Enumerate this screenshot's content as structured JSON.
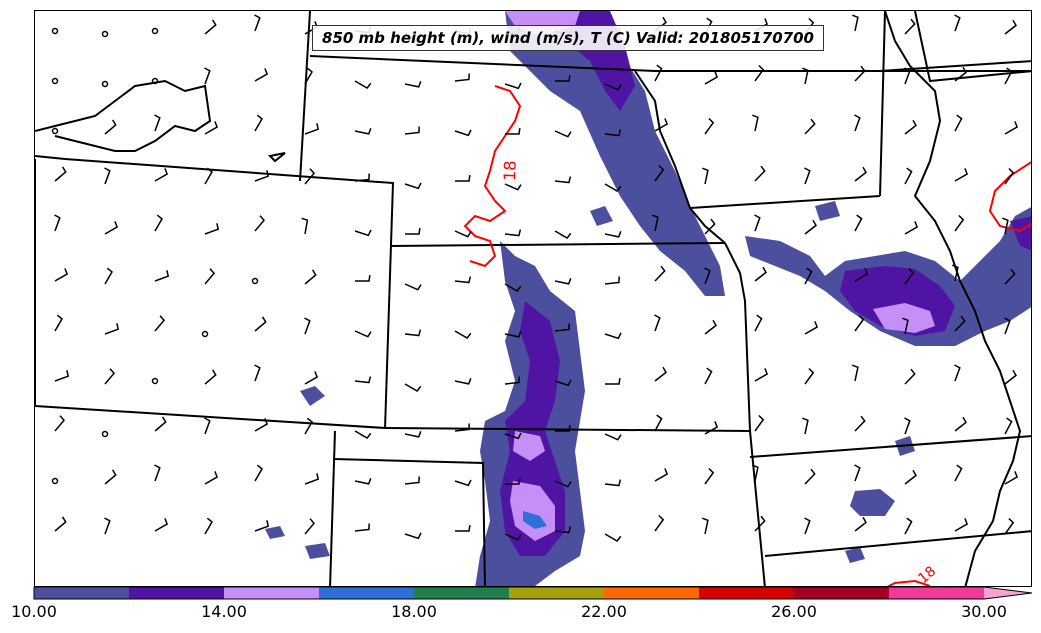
{
  "title": "850 mb height (m), wind (m/s), T (C) Valid: 201805170700",
  "contour_labels": [
    {
      "text": "18",
      "color": "#ff0000"
    },
    {
      "text": "18",
      "color": "#ff0000"
    }
  ],
  "colorbar": {
    "colors": [
      "#4b4f9e",
      "#5014a4",
      "#c58ff7",
      "#2f6fd7",
      "#207f4a",
      "#a6a10a",
      "#ff6a00",
      "#d60000",
      "#a40022",
      "#f3399a",
      "#f7a3d0"
    ],
    "ticks": [
      "10.00",
      "14.00",
      "18.00",
      "22.00",
      "26.00",
      "30.00"
    ]
  },
  "shading_colors": {
    "level_10": "#4b4f9e",
    "level_12": "#5014a4",
    "level_14": "#c58ff7",
    "level_16": "#2f6fd7"
  },
  "line_colors": {
    "boundaries": "#000000",
    "temperature_contour": "#ff0000"
  }
}
